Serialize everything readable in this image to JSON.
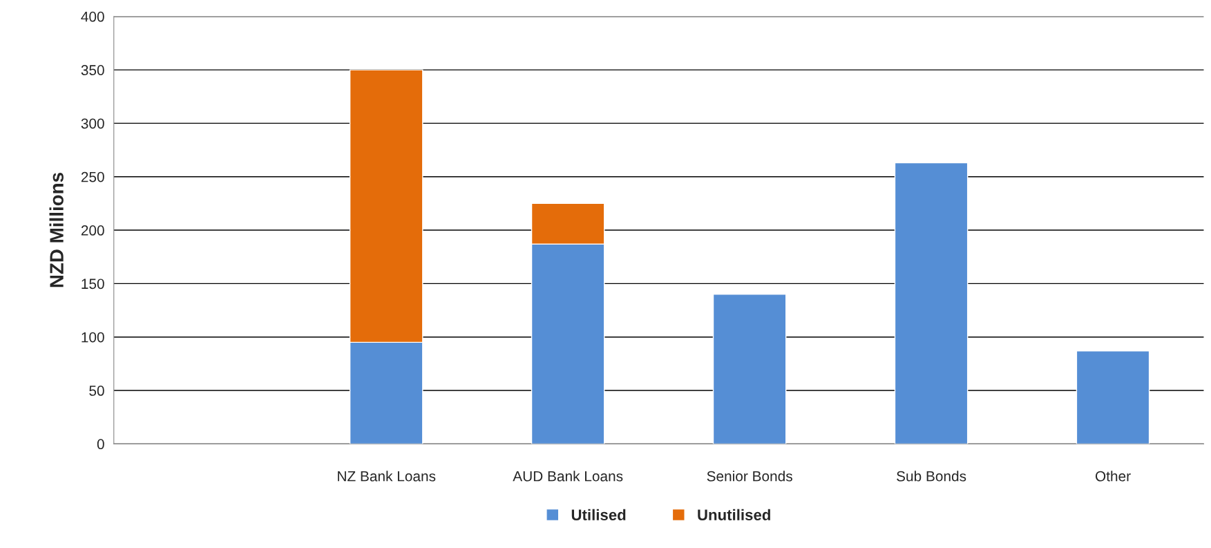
{
  "chart_data": {
    "type": "bar",
    "ylabel": "NZD Millions",
    "categories": [
      null,
      "NZ Bank Loans",
      "AUD Bank Loans",
      "Senior Bonds",
      "Sub Bonds",
      "Other"
    ],
    "series": [
      {
        "name": "Utilised",
        "color": "#558ed5",
        "values": [
          null,
          95,
          187,
          140,
          263,
          87
        ]
      },
      {
        "name": "Unutilised",
        "color": "#e46c0a",
        "values": [
          null,
          255,
          38,
          null,
          null,
          null
        ]
      }
    ],
    "stacked": true,
    "ylim": [
      0,
      400
    ],
    "yticks": [
      0,
      50,
      100,
      150,
      200,
      250,
      300,
      350,
      400
    ],
    "grid": "y",
    "legend": "bottom"
  }
}
